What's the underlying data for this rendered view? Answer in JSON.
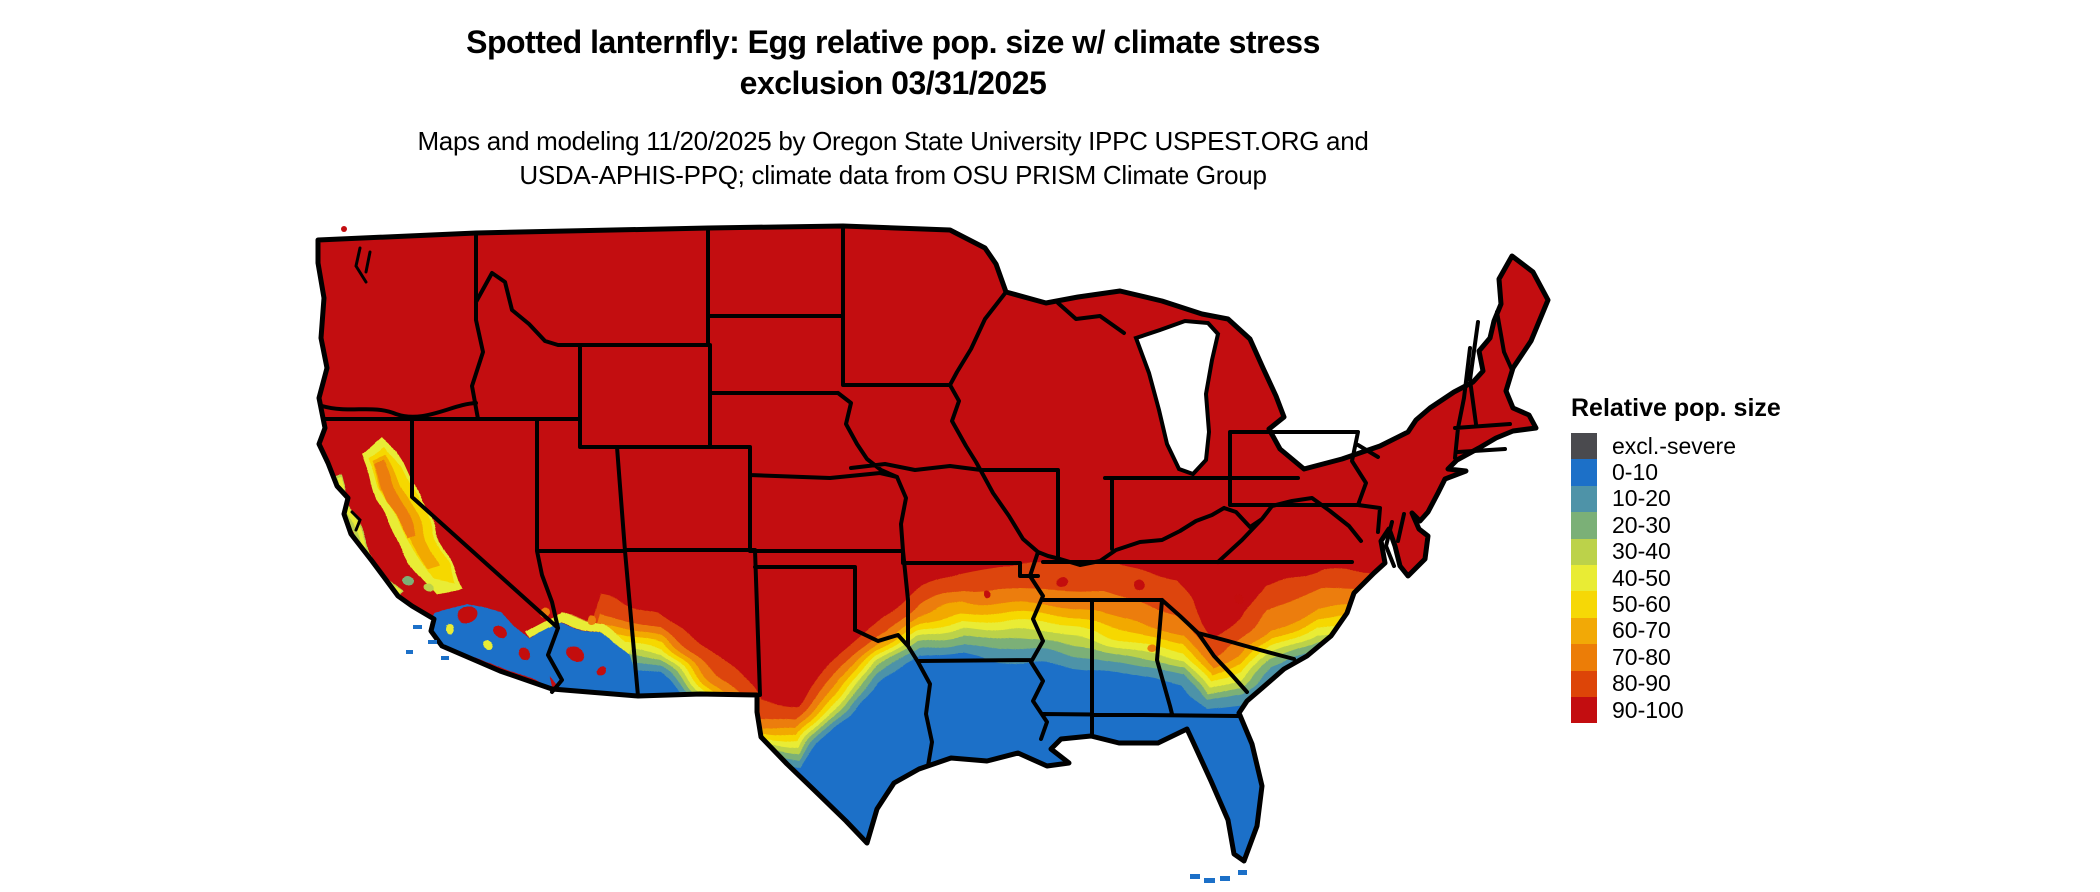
{
  "title": {
    "line1": "Spotted lanternfly: Egg relative pop. size w/ climate stress",
    "line2": "exclusion 03/31/2025"
  },
  "subtitle": {
    "line1": "Maps and modeling 11/20/2025 by Oregon State University IPPC USPEST.ORG and",
    "line2": "USDA-APHIS-PPQ; climate data from OSU PRISM Climate Group"
  },
  "legend": {
    "title": "Relative pop. size",
    "items": [
      {
        "label": "excl.-severe",
        "color": "#4a4a4e"
      },
      {
        "label": "0-10",
        "color": "#1c70c8"
      },
      {
        "label": "10-20",
        "color": "#4e93a8"
      },
      {
        "label": "20-30",
        "color": "#7bb077"
      },
      {
        "label": "30-40",
        "color": "#bcd24a"
      },
      {
        "label": "40-50",
        "color": "#e9ec34"
      },
      {
        "label": "50-60",
        "color": "#f6d806"
      },
      {
        "label": "60-70",
        "color": "#f2a906"
      },
      {
        "label": "70-80",
        "color": "#ec7d07"
      },
      {
        "label": "80-90",
        "color": "#dd4508"
      },
      {
        "label": "90-100",
        "color": "#c30d10"
      }
    ]
  },
  "map": {
    "dominant_category": "90-100",
    "border_color": "#000000",
    "background_color": "#ffffff",
    "lakes_color": "#ffffff"
  }
}
